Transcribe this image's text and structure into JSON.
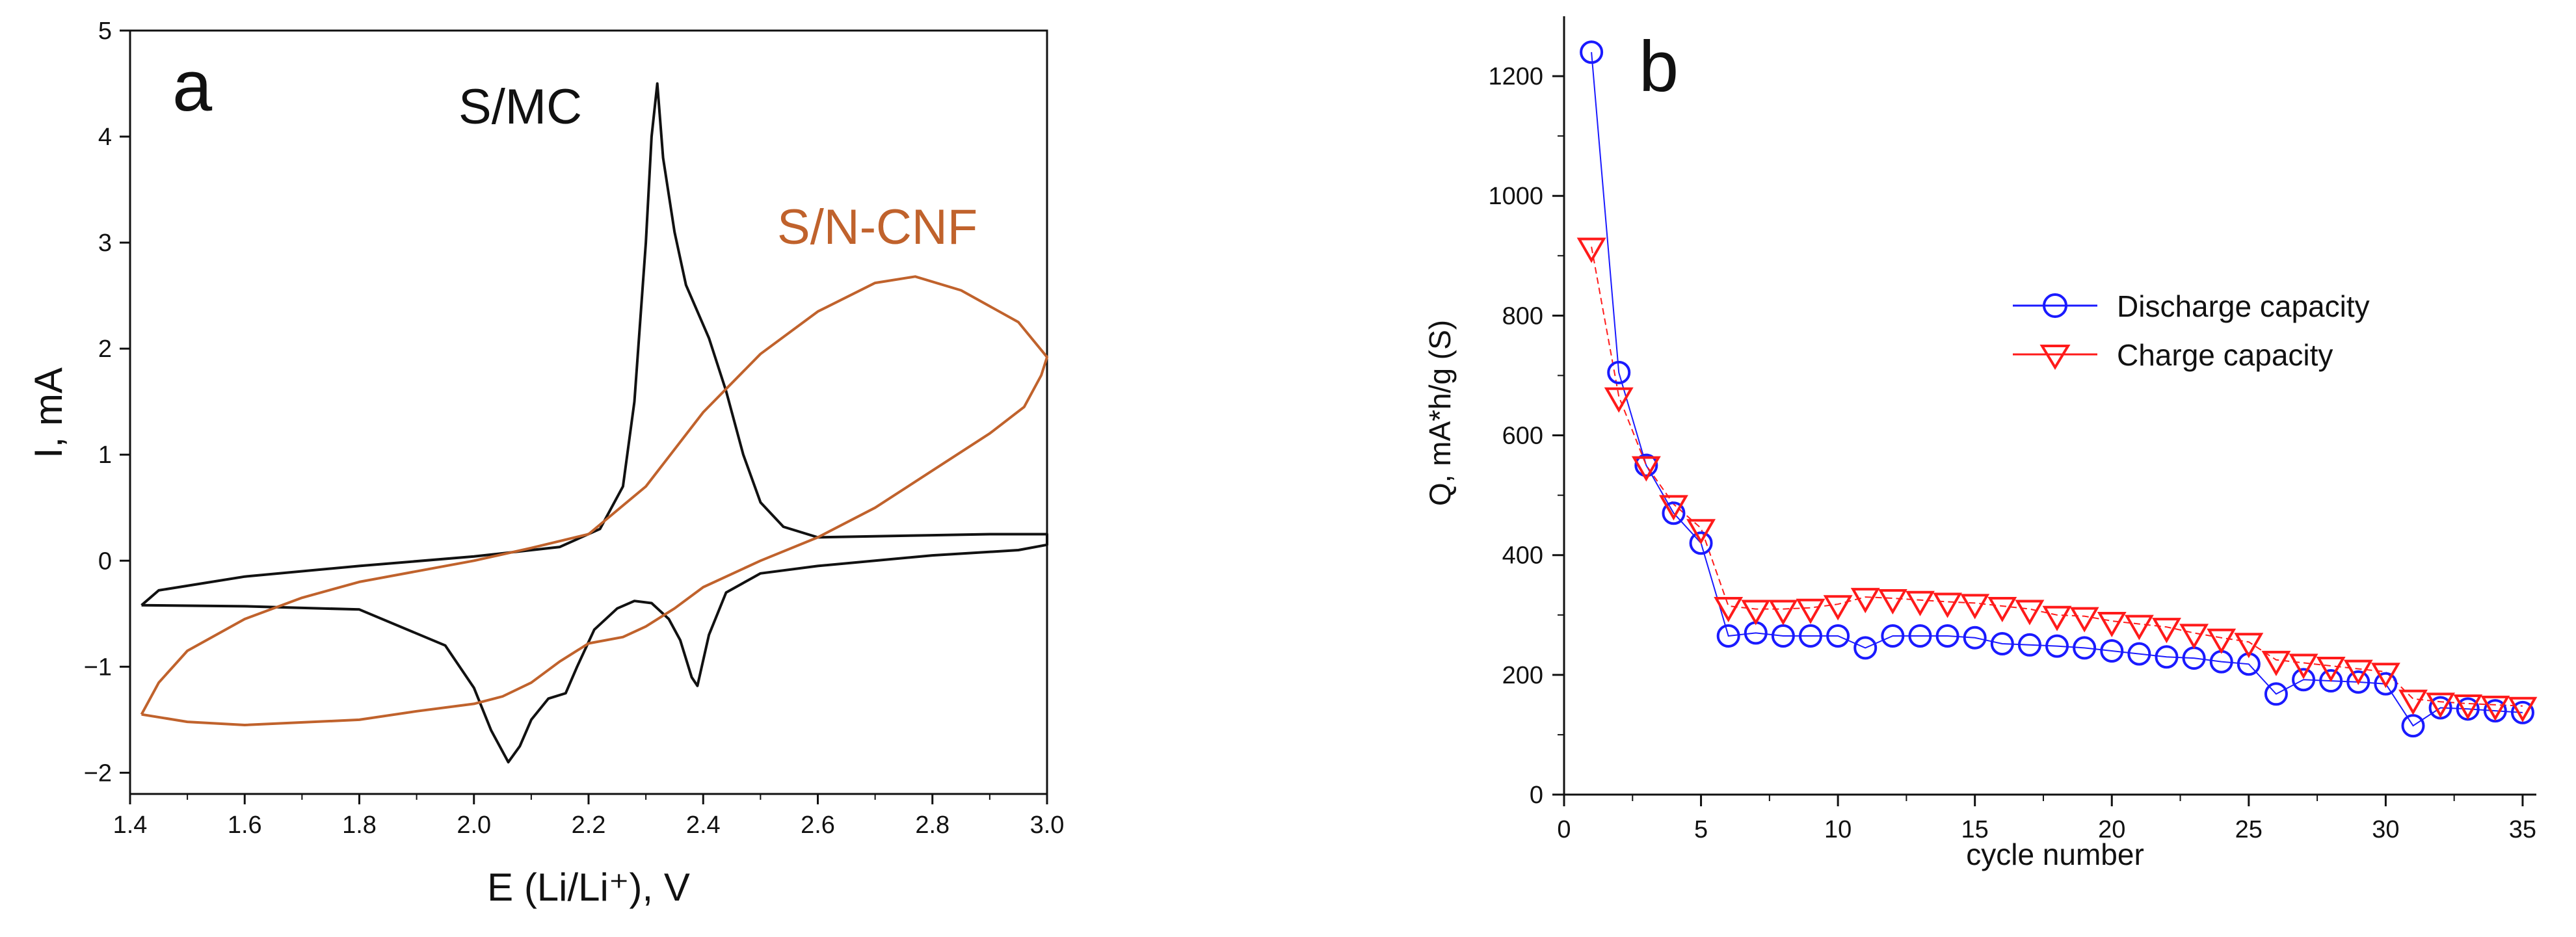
{
  "chart_data": [
    {
      "panel_label": "a",
      "type": "line",
      "xlabel": "E (Li/Li⁺), V",
      "ylabel": "I, mA",
      "xlim": [
        1.4,
        3.0
      ],
      "ylim": [
        -2.2,
        5
      ],
      "x_ticks": [
        1.4,
        1.6,
        1.8,
        2.0,
        2.2,
        2.4,
        2.6,
        2.8,
        3.0
      ],
      "x_tick_labels": [
        "1.4",
        "1.6",
        "1.8",
        "2.0",
        "2.2",
        "2.4",
        "2.6",
        "2.8",
        "3.0"
      ],
      "y_ticks": [
        -2,
        -1,
        0,
        1,
        2,
        3,
        4,
        5
      ],
      "y_tick_labels": [
        "−2",
        "−1",
        "0",
        "1",
        "2",
        "3",
        "4",
        "5"
      ],
      "grid": false,
      "series": [
        {
          "name": "S/MC",
          "color": "#111111",
          "points": [
            [
              1.42,
              -0.42
            ],
            [
              1.6,
              -0.43
            ],
            [
              1.8,
              -0.46
            ],
            [
              1.95,
              -0.8
            ],
            [
              2.0,
              -1.2
            ],
            [
              2.03,
              -1.6
            ],
            [
              2.06,
              -1.9
            ],
            [
              2.08,
              -1.75
            ],
            [
              2.1,
              -1.5
            ],
            [
              2.13,
              -1.3
            ],
            [
              2.16,
              -1.25
            ],
            [
              2.18,
              -1.0
            ],
            [
              2.21,
              -0.65
            ],
            [
              2.25,
              -0.45
            ],
            [
              2.28,
              -0.38
            ],
            [
              2.31,
              -0.4
            ],
            [
              2.34,
              -0.55
            ],
            [
              2.36,
              -0.75
            ],
            [
              2.38,
              -1.1
            ],
            [
              2.39,
              -1.18
            ],
            [
              2.41,
              -0.7
            ],
            [
              2.44,
              -0.3
            ],
            [
              2.5,
              -0.12
            ],
            [
              2.6,
              -0.05
            ],
            [
              2.8,
              0.05
            ],
            [
              2.95,
              0.1
            ],
            [
              3.0,
              0.15
            ],
            [
              3.0,
              0.25
            ],
            [
              2.9,
              0.25
            ],
            [
              2.8,
              0.24
            ],
            [
              2.6,
              0.22
            ],
            [
              2.54,
              0.32
            ],
            [
              2.5,
              0.55
            ],
            [
              2.47,
              1.0
            ],
            [
              2.44,
              1.6
            ],
            [
              2.41,
              2.1
            ],
            [
              2.37,
              2.6
            ],
            [
              2.35,
              3.1
            ],
            [
              2.33,
              3.8
            ],
            [
              2.32,
              4.5
            ],
            [
              2.31,
              4.0
            ],
            [
              2.3,
              3.0
            ],
            [
              2.28,
              1.5
            ],
            [
              2.26,
              0.7
            ],
            [
              2.22,
              0.3
            ],
            [
              2.15,
              0.13
            ],
            [
              2.0,
              0.04
            ],
            [
              1.8,
              -0.05
            ],
            [
              1.6,
              -0.15
            ],
            [
              1.45,
              -0.28
            ],
            [
              1.42,
              -0.42
            ]
          ]
        },
        {
          "name": "S/N-CNF",
          "color": "#c0622c",
          "points": [
            [
              1.42,
              -1.45
            ],
            [
              1.5,
              -1.52
            ],
            [
              1.6,
              -1.55
            ],
            [
              1.8,
              -1.5
            ],
            [
              1.9,
              -1.42
            ],
            [
              2.0,
              -1.35
            ],
            [
              2.05,
              -1.28
            ],
            [
              2.1,
              -1.15
            ],
            [
              2.15,
              -0.95
            ],
            [
              2.2,
              -0.78
            ],
            [
              2.26,
              -0.72
            ],
            [
              2.3,
              -0.62
            ],
            [
              2.35,
              -0.45
            ],
            [
              2.4,
              -0.25
            ],
            [
              2.5,
              0.0
            ],
            [
              2.6,
              0.22
            ],
            [
              2.7,
              0.5
            ],
            [
              2.8,
              0.85
            ],
            [
              2.9,
              1.2
            ],
            [
              2.96,
              1.45
            ],
            [
              2.99,
              1.75
            ],
            [
              3.0,
              1.92
            ],
            [
              2.95,
              2.25
            ],
            [
              2.85,
              2.55
            ],
            [
              2.77,
              2.68
            ],
            [
              2.7,
              2.62
            ],
            [
              2.6,
              2.35
            ],
            [
              2.5,
              1.95
            ],
            [
              2.4,
              1.4
            ],
            [
              2.3,
              0.7
            ],
            [
              2.2,
              0.25
            ],
            [
              2.1,
              0.12
            ],
            [
              2.0,
              0.0
            ],
            [
              1.8,
              -0.2
            ],
            [
              1.7,
              -0.35
            ],
            [
              1.6,
              -0.55
            ],
            [
              1.5,
              -0.85
            ],
            [
              1.45,
              -1.15
            ],
            [
              1.42,
              -1.45
            ]
          ]
        }
      ]
    },
    {
      "panel_label": "b",
      "type": "scatter",
      "xlabel": "cycle number",
      "ylabel": "Q, mA*h/g (S)",
      "xlim": [
        0,
        35.5
      ],
      "ylim": [
        0,
        1300
      ],
      "x_ticks": [
        0,
        5,
        10,
        15,
        20,
        25,
        30,
        35
      ],
      "x_tick_labels": [
        "0",
        "5",
        "10",
        "15",
        "20",
        "25",
        "30",
        "35"
      ],
      "y_ticks": [
        0,
        200,
        400,
        600,
        800,
        1000,
        1200
      ],
      "y_tick_labels": [
        "0",
        "200",
        "400",
        "600",
        "800",
        "1000",
        "1200"
      ],
      "legend_position": "right",
      "grid": false,
      "x": [
        1,
        2,
        3,
        4,
        5,
        6,
        7,
        8,
        9,
        10,
        11,
        12,
        13,
        14,
        15,
        16,
        17,
        18,
        19,
        20,
        21,
        22,
        23,
        24,
        25,
        26,
        27,
        28,
        29,
        30,
        31,
        32,
        33,
        34,
        35
      ],
      "series": [
        {
          "name": "Discharge capacity",
          "marker": "circle",
          "color": "#1a1aff",
          "values": [
            1240,
            705,
            550,
            470,
            420,
            265,
            270,
            265,
            265,
            265,
            245,
            265,
            265,
            265,
            262,
            252,
            250,
            248,
            245,
            240,
            235,
            230,
            228,
            222,
            218,
            168,
            192,
            190,
            188,
            185,
            115,
            145,
            143,
            140,
            137
          ]
        },
        {
          "name": "Charge capacity",
          "marker": "triangle-down",
          "color": "#ff1a1a",
          "values": [
            915,
            665,
            550,
            485,
            445,
            315,
            310,
            310,
            312,
            318,
            330,
            328,
            325,
            322,
            320,
            315,
            310,
            300,
            298,
            290,
            285,
            280,
            270,
            262,
            255,
            225,
            220,
            215,
            210,
            205,
            160,
            155,
            152,
            150,
            148
          ]
        }
      ]
    }
  ]
}
